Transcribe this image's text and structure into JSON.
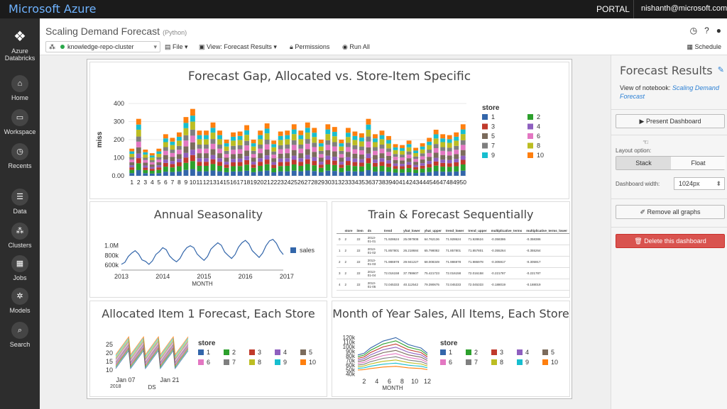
{
  "topbar": {
    "brand": "Microsoft Azure",
    "portal": "PORTAL",
    "user": "nishanth@microsoft.com"
  },
  "sidebar": {
    "items": [
      {
        "label": "Azure Databricks",
        "icon": "stack-icon"
      },
      {
        "label": "Home",
        "icon": "home-icon"
      },
      {
        "label": "Workspace",
        "icon": "folder-icon"
      },
      {
        "label": "Recents",
        "icon": "clock-icon"
      },
      {
        "label": "Data",
        "icon": "database-icon"
      },
      {
        "label": "Clusters",
        "icon": "clusters-icon"
      },
      {
        "label": "Jobs",
        "icon": "calendar-icon"
      },
      {
        "label": "Models",
        "icon": "models-icon"
      },
      {
        "label": "Search",
        "icon": "search-icon"
      }
    ]
  },
  "header": {
    "title": "Scaling Demand Forecast",
    "language": "(Python)",
    "cluster": "knowledge-repo-cluster",
    "file": "File",
    "view": "View: Forecast Results",
    "permissions": "Permissions",
    "run_all": "Run All",
    "schedule": "Schedule"
  },
  "right_panel": {
    "title": "Forecast Results",
    "view_of": "View of notebook:",
    "notebook_link": "Scaling Demand Forecast",
    "present": "Present Dashboard",
    "layout_label": "Layout option:",
    "stack": "Stack",
    "float": "Float",
    "width_label": "Dashboard width:",
    "width_value": "1024px",
    "remove": "Remove all graphs",
    "delete": "Delete this dashboard"
  },
  "chart_data": [
    {
      "type": "bar",
      "title": "Forecast Gap, Allocated vs. Store-Item Specific",
      "ylabel": "miss",
      "ylim": [
        0,
        400
      ],
      "yticks": [
        "0.00",
        "100",
        "200",
        "300",
        "400"
      ],
      "categories": [
        "1",
        "2",
        "3",
        "4",
        "5",
        "6",
        "7",
        "8",
        "9",
        "10",
        "11",
        "12",
        "13",
        "14",
        "15",
        "16",
        "17",
        "18",
        "19",
        "20",
        "21",
        "22",
        "23",
        "24",
        "25",
        "26",
        "27",
        "28",
        "29",
        "30",
        "31",
        "32",
        "33",
        "34",
        "35",
        "36",
        "37",
        "38",
        "39",
        "40",
        "41",
        "42",
        "43",
        "44",
        "45",
        "46",
        "47",
        "48",
        "49",
        "50"
      ],
      "totals": [
        150,
        315,
        145,
        125,
        150,
        230,
        210,
        240,
        325,
        370,
        250,
        250,
        295,
        250,
        200,
        240,
        245,
        280,
        200,
        250,
        290,
        195,
        245,
        250,
        285,
        250,
        295,
        265,
        200,
        285,
        270,
        200,
        265,
        245,
        235,
        315,
        230,
        250,
        220,
        175,
        170,
        195,
        155,
        180,
        210,
        255,
        230,
        225,
        240,
        285
      ],
      "legend_title": "store",
      "legend": [
        "1",
        "2",
        "3",
        "4",
        "5",
        "6",
        "7",
        "8",
        "9",
        "10"
      ]
    },
    {
      "type": "line",
      "title": "Annual Seasonality",
      "xlabel": "MONTH",
      "series": [
        {
          "name": "sales"
        }
      ],
      "x_ticks": [
        "2013",
        "2014",
        "2015",
        "2016",
        "2017"
      ],
      "y_ticks": [
        "600k",
        "800k",
        "1.0M"
      ],
      "values": [
        620,
        660,
        780,
        850,
        900,
        830,
        710,
        680,
        620,
        690,
        820,
        880,
        960,
        920,
        790,
        720,
        670,
        740,
        870,
        960,
        1000,
        960,
        830,
        760,
        700,
        780,
        930,
        1000,
        1060,
        1010,
        870,
        800,
        740,
        820,
        970,
        1060,
        1110,
        1040,
        900,
        830,
        760,
        850,
        1000,
        1100,
        1130,
        1050,
        910,
        820
      ]
    },
    {
      "type": "table",
      "title": "Train & Forecast Sequentially",
      "columns": [
        "",
        "store",
        "item",
        "ds",
        "trend",
        "yhat_lower",
        "yhat_upper",
        "trend_lower",
        "trend_upper",
        "multiplicative_terms",
        "multiplicative_terms_lower"
      ],
      "rows": [
        [
          "0",
          "2",
          "22",
          "2013-01-01",
          "71.928624",
          "25.097808",
          "64.762136",
          "71.928624",
          "71.928624",
          "-0.358386",
          "-0.358386"
        ],
        [
          "1",
          "2",
          "22",
          "2013-01-02",
          "71.857801",
          "26.218684",
          "65.798082",
          "71.857801",
          "71.857801",
          "-0.355264",
          "-0.355264"
        ],
        [
          "2",
          "2",
          "22",
          "2013-01-03",
          "71.986978",
          "29.941227",
          "68.008349",
          "71.986978",
          "71.986978",
          "-0.305917",
          "-0.305917"
        ],
        [
          "3",
          "2",
          "22",
          "2013-01-04",
          "72.016158",
          "37.788607",
          "75.421723",
          "72.016158",
          "72.016158",
          "-0.221787",
          "-0.221787"
        ],
        [
          "4",
          "2",
          "22",
          "2013-01-05",
          "72.045333",
          "40.112542",
          "79.390675",
          "72.045333",
          "72.045333",
          "-0.188019",
          "-0.188019"
        ]
      ]
    },
    {
      "type": "line",
      "title": "Allocated Item 1 Forecast, Each Store",
      "xlabel": "DS",
      "x_ticks": [
        "Jan 07",
        "Jan 21"
      ],
      "x_year": "2018",
      "y_ticks": [
        "10",
        "15",
        "20",
        "25"
      ],
      "ylim": [
        8,
        28
      ],
      "legend_title": "store",
      "legend": [
        "1",
        "2",
        "3",
        "4",
        "5",
        "6",
        "7",
        "8",
        "9",
        "10"
      ]
    },
    {
      "type": "line",
      "title": "Month of Year Sales, All Items, Each Store",
      "xlabel": "MONTH",
      "x_ticks": [
        "2",
        "4",
        "6",
        "8",
        "10",
        "12"
      ],
      "y_ticks": [
        "40k",
        "50k",
        "60k",
        "70k",
        "80k",
        "90k",
        "100k",
        "110k",
        "120k"
      ],
      "ylim": [
        38,
        125
      ],
      "legend_title": "store",
      "legend": [
        "1",
        "2",
        "3",
        "4",
        "5",
        "6",
        "7",
        "8",
        "9",
        "10"
      ]
    }
  ],
  "colors": {
    "s1": "#3366aa",
    "s2": "#2ca02c",
    "s3": "#c0392b",
    "s4": "#8e5fbf",
    "s5": "#7b6b5c",
    "s6": "#e377c2",
    "s7": "#7f7f7f",
    "s8": "#bcbd22",
    "s9": "#17becf",
    "s10": "#ff7f0e",
    "accent": "#2a7fd4",
    "danger": "#d9534f"
  }
}
